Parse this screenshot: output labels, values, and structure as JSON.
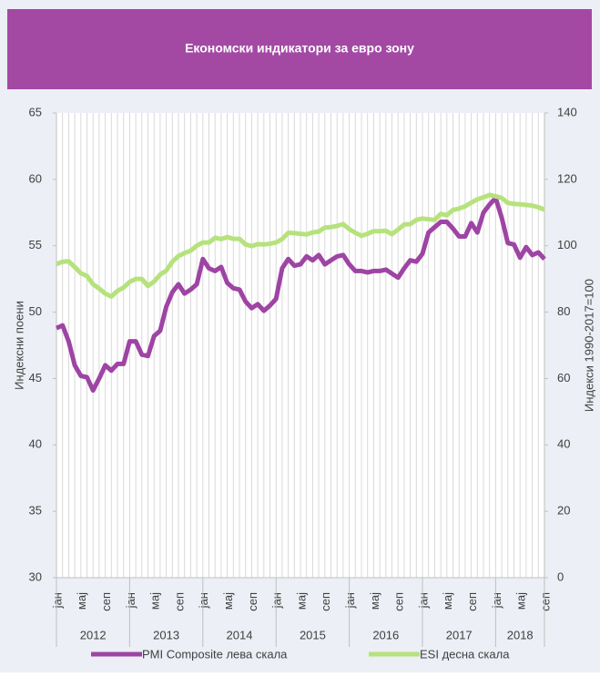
{
  "chart_data": {
    "type": "line",
    "title": "Економски индикатори за евро зону",
    "ylabel": "Индексни поени",
    "y2label": "Индекси 1990-2017=100",
    "categories": [
      "јан",
      null,
      null,
      null,
      "мај",
      null,
      null,
      null,
      "сеп",
      null,
      null,
      null,
      "јан",
      null,
      null,
      null,
      "мај",
      null,
      null,
      null,
      "сеп",
      null,
      null,
      null,
      "јан",
      null,
      null,
      null,
      "мај",
      null,
      null,
      null,
      "сеп",
      null,
      null,
      null,
      "јан",
      null,
      null,
      null,
      "мај",
      null,
      null,
      null,
      "сеп",
      null,
      null,
      null,
      "јан",
      null,
      null,
      null,
      "мај",
      null,
      null,
      null,
      "сеп",
      null,
      null,
      null,
      "јан",
      null,
      null,
      null,
      "мај",
      null,
      null,
      null,
      "сеп",
      null,
      null,
      null,
      "јан",
      null,
      null,
      null,
      "мај",
      null,
      null,
      null,
      "сеп"
    ],
    "years": [
      "2012",
      "2013",
      "2014",
      "2015",
      "2016",
      "2017",
      "2018"
    ],
    "series": [
      {
        "name": "PMI Composite лева скала",
        "color": "#9e44a4",
        "axis": "y",
        "values": [
          48.8,
          49.0,
          47.8,
          46.0,
          45.2,
          45.1,
          44.1,
          45.0,
          46.0,
          45.6,
          46.1,
          46.1,
          47.8,
          47.8,
          46.8,
          46.7,
          48.2,
          48.6,
          50.4,
          51.5,
          52.1,
          51.4,
          51.7,
          52.1,
          54.0,
          53.3,
          53.1,
          53.4,
          52.2,
          51.8,
          51.7,
          50.8,
          50.3,
          50.6,
          50.1,
          50.5,
          51.0,
          53.3,
          54.0,
          53.5,
          53.6,
          54.2,
          53.9,
          54.3,
          53.6,
          53.9,
          54.2,
          54.3,
          53.6,
          53.1,
          53.1,
          53.0,
          53.1,
          53.1,
          53.2,
          52.9,
          52.6,
          53.3,
          53.9,
          53.8,
          54.4,
          56.0,
          56.4,
          56.8,
          56.8,
          56.3,
          55.7,
          55.7,
          56.7,
          56.0,
          57.5,
          58.1,
          58.6,
          57.1,
          55.2,
          55.1,
          54.1,
          54.9,
          54.3,
          54.5,
          54.0
        ]
      },
      {
        "name": "ESI десна скала",
        "color": "#b6e27c",
        "axis": "y2",
        "values": [
          94.5,
          95.2,
          95.3,
          93.6,
          91.7,
          90.9,
          88.4,
          87.1,
          85.6,
          84.7,
          86.4,
          87.4,
          89.1,
          90.0,
          90.0,
          87.9,
          89.2,
          91.3,
          92.5,
          95.2,
          96.9,
          97.8,
          98.5,
          100.0,
          101.0,
          101.0,
          102.4,
          102.0,
          102.6,
          102.1,
          102.1,
          100.4,
          99.9,
          100.5,
          100.4,
          100.6,
          101.0,
          102.0,
          103.9,
          103.8,
          103.6,
          103.4,
          104.0,
          104.3,
          105.5,
          105.6,
          106.0,
          106.5,
          105.0,
          103.9,
          103.0,
          103.6,
          104.4,
          104.4,
          104.5,
          103.5,
          104.9,
          106.4,
          106.5,
          107.8,
          108.2,
          108.0,
          107.8,
          109.6,
          109.2,
          110.8,
          111.2,
          111.9,
          113.0,
          114.0,
          114.6,
          115.3,
          114.9,
          114.4,
          112.9,
          112.6,
          112.5,
          112.3,
          112.1,
          111.6,
          110.9
        ]
      }
    ],
    "ylim": [
      30,
      65
    ],
    "yticks": [
      30,
      35,
      40,
      45,
      50,
      55,
      60,
      65
    ],
    "y2lim": [
      0,
      140
    ],
    "y2ticks": [
      0,
      20,
      40,
      60,
      80,
      100,
      120,
      140
    ],
    "grid": true,
    "legend": "bottom"
  }
}
